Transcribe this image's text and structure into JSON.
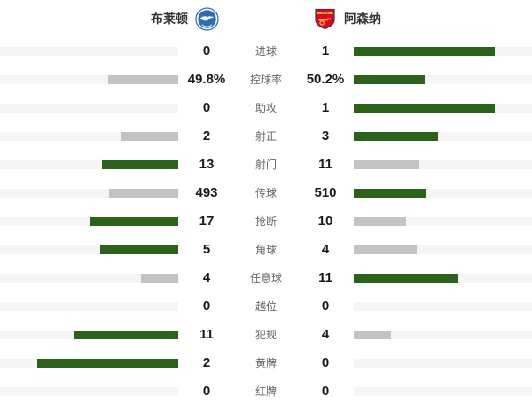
{
  "header": {
    "home_team": "布莱顿",
    "away_team": "阿森纳",
    "home_crest_icon": "brighton-crest-icon",
    "away_crest_icon": "arsenal-crest-icon"
  },
  "colors": {
    "win_bar": "#2a6318",
    "lose_bar": "#c3c3c3",
    "bar_track": "#f5f5f5",
    "brighton_blue": "#2e6db4",
    "arsenal_red": "#e8001d",
    "arsenal_gold": "#f6c343"
  },
  "chart_data": {
    "type": "bar",
    "title": "",
    "legend_position": "top",
    "grid": false,
    "categories": [
      "进球",
      "控球率",
      "助攻",
      "射正",
      "射门",
      "传球",
      "抢断",
      "角球",
      "任意球",
      "越位",
      "犯规",
      "黄牌",
      "红牌"
    ],
    "series": [
      {
        "name": "布莱顿",
        "values": [
          0,
          49.8,
          0,
          2,
          13,
          493,
          17,
          5,
          4,
          0,
          11,
          2,
          0
        ],
        "display": [
          "0",
          "49.8%",
          "0",
          "2",
          "13",
          "493",
          "17",
          "5",
          "4",
          "0",
          "11",
          "2",
          "0"
        ]
      },
      {
        "name": "阿森纳",
        "values": [
          1,
          50.2,
          1,
          3,
          11,
          510,
          10,
          4,
          11,
          0,
          4,
          0,
          0
        ],
        "display": [
          "1",
          "50.2%",
          "1",
          "3",
          "11",
          "510",
          "10",
          "4",
          "11",
          "0",
          "4",
          "0",
          "0"
        ]
      }
    ],
    "bar_rule": "fill length = value / (home+away) of max 159px; higher value is green, lower is gray, zero sum shows empty track"
  }
}
